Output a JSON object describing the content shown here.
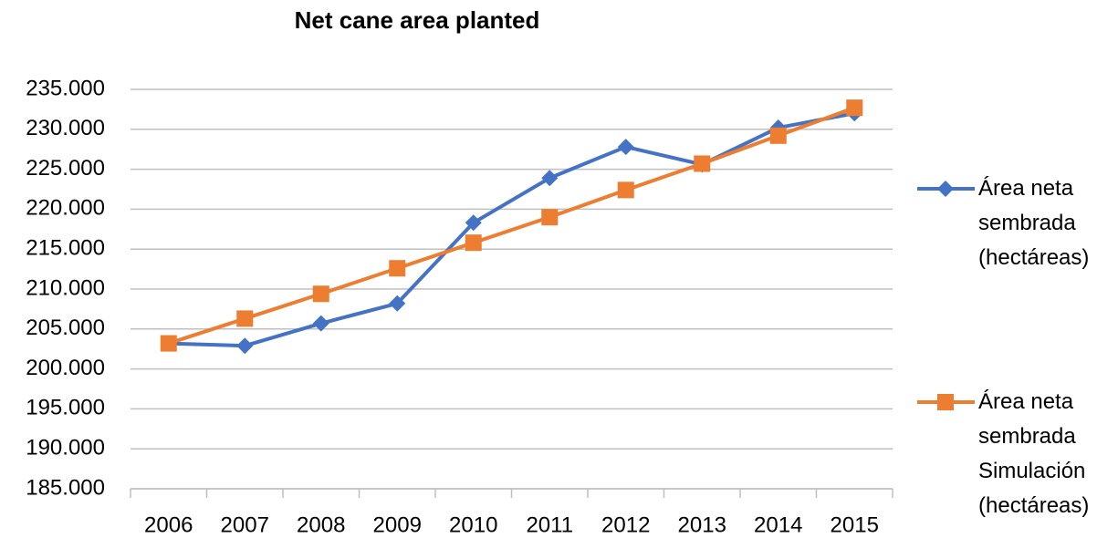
{
  "chart_data": {
    "type": "line",
    "title": "Net cane area planted",
    "categories": [
      "2006",
      "2007",
      "2008",
      "2009",
      "2010",
      "2011",
      "2012",
      "2013",
      "2014",
      "2015"
    ],
    "series": [
      {
        "name": "Área neta sembrada (hectáreas)",
        "color": "#4472c4",
        "marker": "diamond",
        "values": [
          203200,
          202900,
          205700,
          208200,
          218300,
          223900,
          227800,
          225600,
          230200,
          232000
        ]
      },
      {
        "name": "Área neta sembrada Simulación (hectáreas)",
        "color": "#ed7d31",
        "marker": "square",
        "values": [
          203200,
          206300,
          209400,
          212600,
          215800,
          219000,
          222400,
          225700,
          229200,
          232700
        ]
      }
    ],
    "ylim": [
      185000,
      235000
    ],
    "yticks": [
      {
        "value": 185000,
        "label": "185.000"
      },
      {
        "value": 190000,
        "label": "190.000"
      },
      {
        "value": 195000,
        "label": "195.000"
      },
      {
        "value": 200000,
        "label": "200.000"
      },
      {
        "value": 205000,
        "label": "205.000"
      },
      {
        "value": 210000,
        "label": "210.000"
      },
      {
        "value": 215000,
        "label": "215.000"
      },
      {
        "value": 220000,
        "label": "220.000"
      },
      {
        "value": 225000,
        "label": "225.000"
      },
      {
        "value": 230000,
        "label": "230.000"
      },
      {
        "value": 235000,
        "label": "235.000"
      }
    ],
    "grid": true,
    "legend": "right"
  }
}
